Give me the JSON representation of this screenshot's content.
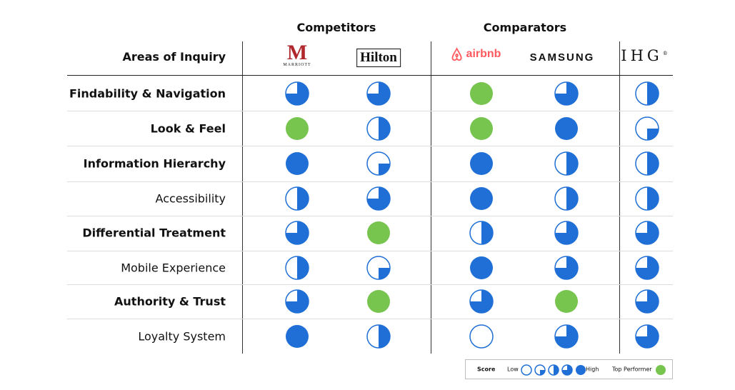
{
  "header": {
    "areas_label": "Areas of Inquiry",
    "groups": [
      {
        "label": "Competitors"
      },
      {
        "label": "Comparators"
      }
    ]
  },
  "brands": [
    {
      "name": "Marriott",
      "logo_text": "MARRIOTT",
      "mark": "M"
    },
    {
      "name": "Hilton",
      "logo_text": "Hilton"
    },
    {
      "name": "airbnb",
      "logo_text": "airbnb"
    },
    {
      "name": "Samsung",
      "logo_text": "SAMSUNG"
    },
    {
      "name": "IHG",
      "logo_text": "IHG",
      "mark": "®"
    }
  ],
  "rows": [
    {
      "label": "Findability & Navigation",
      "bold": true,
      "scores": [
        3,
        3,
        "top",
        3,
        2
      ]
    },
    {
      "label": "Look & Feel",
      "bold": true,
      "scores": [
        "top",
        2,
        "top",
        4,
        1
      ]
    },
    {
      "label": "Information Hierarchy",
      "bold": true,
      "scores": [
        4,
        1,
        4,
        2,
        2
      ]
    },
    {
      "label": "Accessibility",
      "bold": false,
      "scores": [
        2,
        3,
        4,
        2,
        2
      ]
    },
    {
      "label": "Differential Treatment",
      "bold": true,
      "scores": [
        3,
        "top",
        2,
        3,
        3
      ]
    },
    {
      "label": "Mobile Experience",
      "bold": false,
      "scores": [
        2,
        1,
        4,
        3,
        3
      ]
    },
    {
      "label": "Authority & Trust",
      "bold": true,
      "scores": [
        3,
        "top",
        3,
        "top",
        3
      ]
    },
    {
      "label": "Loyalty System",
      "bold": false,
      "scores": [
        4,
        2,
        0,
        3,
        3
      ]
    }
  ],
  "legend": {
    "score_label": "Score",
    "low_label": "Low",
    "high_label": "High",
    "top_label": "Top Performer",
    "levels": [
      0,
      1,
      2,
      3,
      4
    ]
  },
  "colors": {
    "score_blue": "#1f6fd6",
    "top_green": "#77c44f",
    "outline": "#1f6fd6",
    "logo_red": "#b0272e",
    "airbnb": "#ff5a5f"
  }
}
